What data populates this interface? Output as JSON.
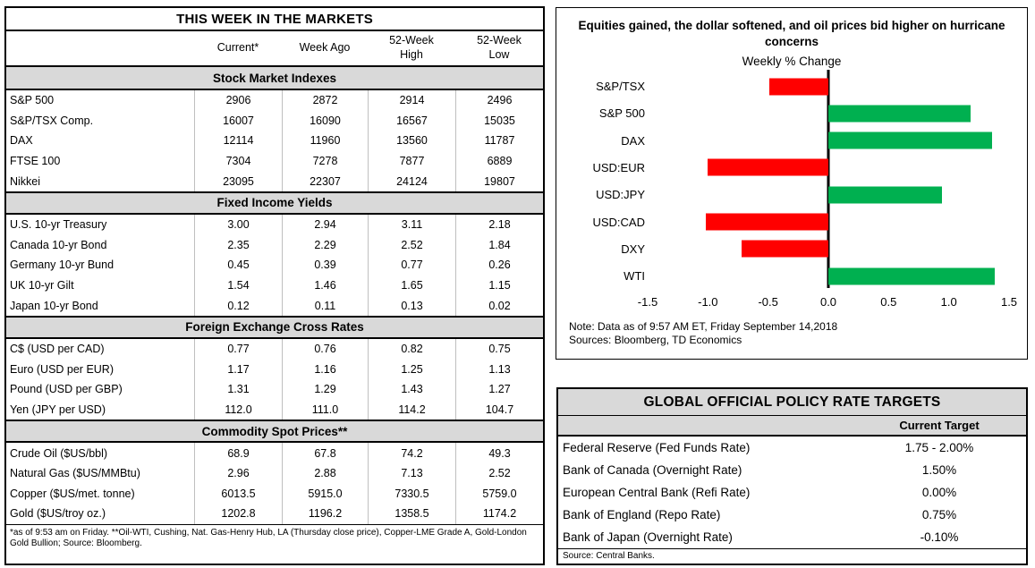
{
  "market_table": {
    "title": "THIS WEEK IN THE MARKETS",
    "columns": [
      "Current*",
      "Week Ago",
      "52-Week\nHigh",
      "52-Week\nLow"
    ],
    "sections": [
      {
        "header": "Stock Market Indexes",
        "rows": [
          {
            "label": "S&P 500",
            "values": [
              "2906",
              "2872",
              "2914",
              "2496"
            ]
          },
          {
            "label": "S&P/TSX Comp.",
            "values": [
              "16007",
              "16090",
              "16567",
              "15035"
            ]
          },
          {
            "label": "DAX",
            "values": [
              "12114",
              "11960",
              "13560",
              "11787"
            ]
          },
          {
            "label": "FTSE 100",
            "values": [
              "7304",
              "7278",
              "7877",
              "6889"
            ]
          },
          {
            "label": "Nikkei",
            "values": [
              "23095",
              "22307",
              "24124",
              "19807"
            ]
          }
        ]
      },
      {
        "header": "Fixed Income Yields",
        "rows": [
          {
            "label": "U.S. 10-yr Treasury",
            "values": [
              "3.00",
              "2.94",
              "3.11",
              "2.18"
            ]
          },
          {
            "label": "Canada 10-yr Bond",
            "values": [
              "2.35",
              "2.29",
              "2.52",
              "1.84"
            ]
          },
          {
            "label": "Germany 10-yr Bund",
            "values": [
              "0.45",
              "0.39",
              "0.77",
              "0.26"
            ]
          },
          {
            "label": "UK 10-yr Gilt",
            "values": [
              "1.54",
              "1.46",
              "1.65",
              "1.15"
            ]
          },
          {
            "label": "Japan 10-yr Bond",
            "values": [
              "0.12",
              "0.11",
              "0.13",
              "0.02"
            ]
          }
        ]
      },
      {
        "header": "Foreign Exchange Cross Rates",
        "rows": [
          {
            "label": "C$ (USD per CAD)",
            "values": [
              "0.77",
              "0.76",
              "0.82",
              "0.75"
            ]
          },
          {
            "label": "Euro (USD per EUR)",
            "values": [
              "1.17",
              "1.16",
              "1.25",
              "1.13"
            ]
          },
          {
            "label": "Pound (USD per GBP)",
            "values": [
              "1.31",
              "1.29",
              "1.43",
              "1.27"
            ]
          },
          {
            "label": "Yen (JPY per USD)",
            "values": [
              "112.0",
              "111.0",
              "114.2",
              "104.7"
            ]
          }
        ]
      },
      {
        "header": "Commodity Spot Prices**",
        "rows": [
          {
            "label": "Crude Oil ($US/bbl)",
            "values": [
              "68.9",
              "67.8",
              "74.2",
              "49.3"
            ]
          },
          {
            "label": "Natural Gas ($US/MMBtu)",
            "values": [
              "2.96",
              "2.88",
              "7.13",
              "2.52"
            ]
          },
          {
            "label": "Copper ($US/met. tonne)",
            "values": [
              "6013.5",
              "5915.0",
              "7330.5",
              "5759.0"
            ]
          },
          {
            "label": "Gold ($US/troy oz.)",
            "values": [
              "1202.8",
              "1196.2",
              "1358.5",
              "1174.2"
            ]
          }
        ]
      }
    ],
    "footnote": "*as of 9:53 am on Friday. **Oil-WTI, Cushing, Nat. Gas-Henry Hub, LA (Thursday close price), Copper-LME Grade A, Gold-London Gold Bullion; Source: Bloomberg."
  },
  "chart_data": {
    "type": "bar",
    "orientation": "horizontal",
    "title": "Equities gained, the dollar softened, and oil prices bid higher on hurricane concerns",
    "xlabel": "Weekly % Change",
    "categories": [
      "S&P/TSX",
      "S&P 500",
      "DAX",
      "USD:EUR",
      "USD:JPY",
      "USD:CAD",
      "DXY",
      "WTI"
    ],
    "values": [
      -0.49,
      1.18,
      1.36,
      -1.0,
      0.94,
      -1.02,
      -0.72,
      1.38
    ],
    "xlim": [
      -1.5,
      1.5
    ],
    "ticks": [
      "-1.5",
      "-1.0",
      "-0.5",
      "0.0",
      "0.5",
      "1.0",
      "1.5"
    ],
    "grid": false,
    "legend": false,
    "colors": {
      "positive": "#00B050",
      "negative": "#FF0000"
    },
    "note": "Note: Data as of 9:57 AM ET, Friday September 14,2018",
    "sources": "Sources: Bloomberg, TD Economics"
  },
  "policy_table": {
    "title": "GLOBAL OFFICIAL POLICY RATE TARGETS",
    "column_header": "Current Target",
    "rows": [
      {
        "label": "Federal Reserve (Fed Funds Rate)",
        "value": "1.75 - 2.00%"
      },
      {
        "label": "Bank of Canada (Overnight Rate)",
        "value": "1.50%"
      },
      {
        "label": "European Central Bank (Refi Rate)",
        "value": "0.00%"
      },
      {
        "label": "Bank of England (Repo Rate)",
        "value": "0.75%"
      },
      {
        "label": "Bank of Japan (Overnight Rate)",
        "value": "-0.10%"
      }
    ],
    "source": "Source: Central Banks."
  }
}
